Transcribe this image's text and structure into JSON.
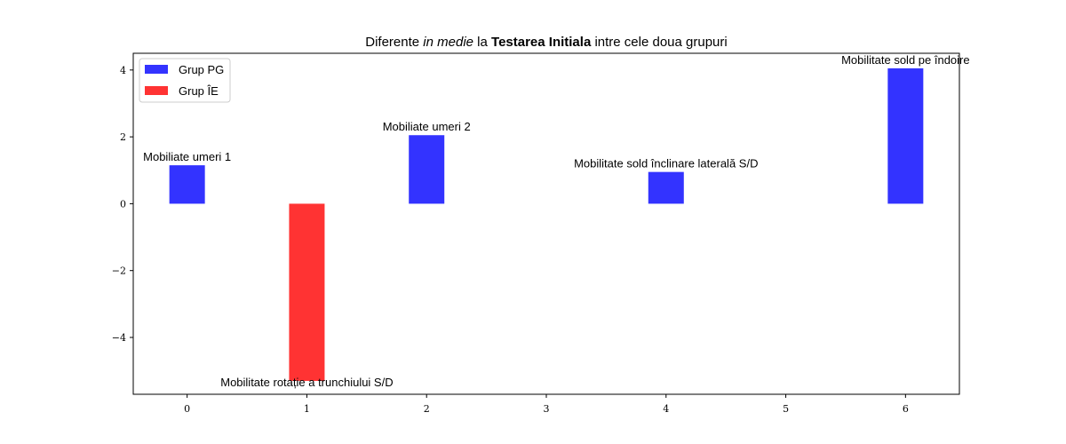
{
  "chart_data": {
    "type": "bar",
    "title": {
      "prefix": "Diferente ",
      "italic": "in medie",
      "middle": " la ",
      "bold": "Testarea Initiala",
      "suffix": " intre cele doua grupuri"
    },
    "xlabel": "",
    "ylabel": "",
    "xlim": [
      -0.45,
      6.45
    ],
    "ylim": [
      -5.7,
      4.5
    ],
    "xticks": [
      0,
      1,
      2,
      3,
      4,
      5,
      6
    ],
    "yticks": [
      4,
      2,
      0,
      -2,
      -4
    ],
    "ytick_labels": [
      "4",
      "2",
      "0",
      "−2",
      "−4"
    ],
    "grid": false,
    "legend": {
      "placement": "top-left",
      "entries": [
        {
          "label": "Grup PG",
          "color": "#3333ff"
        },
        {
          "label": "Grup ÎE",
          "color": "#ff3333"
        }
      ]
    },
    "bars": [
      {
        "x": 0,
        "value": 1.15,
        "group": "Grup PG",
        "label": "Mobiliate umeri 1"
      },
      {
        "x": 1,
        "value": -5.3,
        "group": "Grup ÎE",
        "label": "Mobilitate rotație a trunchiului S/D"
      },
      {
        "x": 2,
        "value": 2.05,
        "group": "Grup PG",
        "label": "Mobiliate umeri 2"
      },
      {
        "x": 4,
        "value": 0.95,
        "group": "Grup PG",
        "label": "Mobilitate sold înclinare laterală S/D"
      },
      {
        "x": 6,
        "value": 4.05,
        "group": "Grup PG",
        "label": "Mobilitate sold pe îndoire"
      }
    ]
  }
}
